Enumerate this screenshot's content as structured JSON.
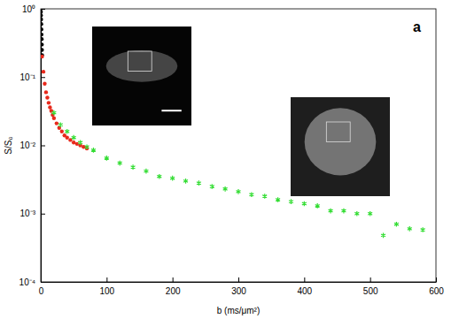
{
  "chart_data": {
    "type": "scatter",
    "x_label": "b (ms/μm²)",
    "y_label": "S/S₀",
    "annotations": [
      "a"
    ],
    "log": "y",
    "grid": false,
    "xlim": [
      0,
      600
    ],
    "xticks": [
      0,
      100,
      200,
      300,
      400,
      500,
      600
    ],
    "ylim": [
      0.0001,
      1
    ],
    "yticks": [
      {
        "value": 0.0001,
        "label": "10⁻⁴"
      },
      {
        "value": 0.001,
        "label": "10⁻³"
      },
      {
        "value": 0.01,
        "label": "10⁻²"
      },
      {
        "value": 0.1,
        "label": "10⁻¹"
      },
      {
        "value": 1,
        "label": "10⁰"
      }
    ],
    "series": [
      {
        "color": "#000000",
        "marker": "point",
        "x": [
          0,
          0.2,
          0.4,
          0.6,
          0.8,
          1,
          1.2,
          1.4,
          1.6,
          1.8,
          2
        ],
        "values": [
          1,
          0.9,
          0.8,
          0.7,
          0.6,
          0.5,
          0.42,
          0.36,
          0.3,
          0.25,
          0.21
        ]
      },
      {
        "color": "#e8291c",
        "marker": "point",
        "x": [
          2,
          4,
          6,
          8,
          10,
          12,
          14,
          16,
          18,
          20,
          24,
          28,
          32,
          36,
          40,
          45,
          50,
          55,
          60,
          65,
          70
        ],
        "values": [
          0.2,
          0.12,
          0.08,
          0.06,
          0.05,
          0.042,
          0.036,
          0.032,
          0.028,
          0.025,
          0.021,
          0.018,
          0.016,
          0.014,
          0.013,
          0.012,
          0.011,
          0.0105,
          0.01,
          0.0095,
          0.009
        ]
      },
      {
        "color": "#33dd33",
        "marker": "asterisk",
        "x": [
          20,
          30,
          40,
          50,
          60,
          70,
          80,
          100,
          120,
          140,
          160,
          180,
          200,
          220,
          240,
          260,
          280,
          300,
          320,
          340,
          360,
          380,
          400,
          420,
          440,
          460,
          480,
          500,
          520,
          540,
          560,
          580
        ],
        "values": [
          0.03,
          0.02,
          0.016,
          0.013,
          0.011,
          0.0095,
          0.0085,
          0.0065,
          0.0055,
          0.0048,
          0.0042,
          0.0035,
          0.0033,
          0.003,
          0.0028,
          0.0025,
          0.0023,
          0.0021,
          0.0019,
          0.0018,
          0.0016,
          0.0015,
          0.0014,
          0.0013,
          0.0011,
          0.0011,
          0.001,
          0.001,
          0.00048,
          0.0007,
          0.0006,
          0.00058
        ]
      }
    ]
  }
}
